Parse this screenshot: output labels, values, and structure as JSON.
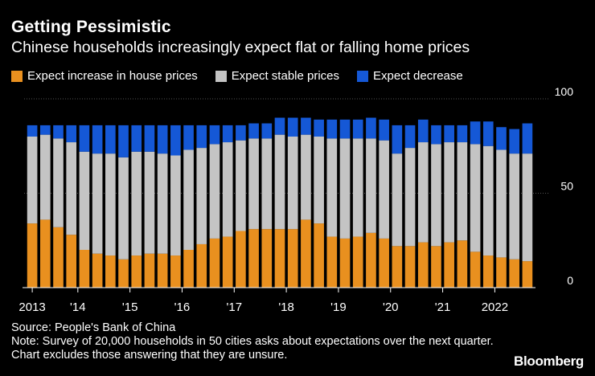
{
  "header": {
    "title": "Getting Pessimistic",
    "subtitle": "Chinese households increasingly expect flat or falling home prices"
  },
  "legend": {
    "increase_label": "Expect increase in house prices",
    "stable_label": "Expect stable prices",
    "decrease_label": "Expect decrease"
  },
  "colors": {
    "increase": "#e9901f",
    "stable": "#c4c4c4",
    "decrease": "#1558d6",
    "background": "#000000",
    "grid": "#555555"
  },
  "chart_data": {
    "type": "bar",
    "stacked": true,
    "title": "Getting Pessimistic",
    "subtitle": "Chinese households increasingly expect flat or falling home prices",
    "ylim": [
      0,
      100
    ],
    "yticks": [
      0,
      50,
      100
    ],
    "y_axis_side": "right",
    "grid": true,
    "x_tick_labels": [
      "2013",
      "'14",
      "'15",
      "'16",
      "'17",
      "'18",
      "'19",
      "'20",
      "'21",
      "2022"
    ],
    "periods": [
      "2013 Q1",
      "2013 Q2",
      "2013 Q3",
      "2013 Q4",
      "2014 Q1",
      "2014 Q2",
      "2014 Q3",
      "2014 Q4",
      "2015 Q1",
      "2015 Q2",
      "2015 Q3",
      "2015 Q4",
      "2016 Q1",
      "2016 Q2",
      "2016 Q3",
      "2016 Q4",
      "2017 Q1",
      "2017 Q2",
      "2017 Q3",
      "2017 Q4",
      "2018 Q1",
      "2018 Q2",
      "2018 Q3",
      "2018 Q4",
      "2019 Q1",
      "2019 Q2",
      "2019 Q3",
      "2019 Q4",
      "2020 Q1",
      "2020 Q2",
      "2020 Q3",
      "2020 Q4",
      "2021 Q1",
      "2021 Q2",
      "2021 Q3",
      "2021 Q4",
      "2022 Q1",
      "2022 Q2",
      "2022 Q3"
    ],
    "series": [
      {
        "name": "Expect increase in house prices",
        "values": [
          34,
          36,
          32,
          28,
          20,
          18,
          17,
          15,
          17,
          18,
          18,
          17,
          20,
          23,
          26,
          27,
          30,
          31,
          31,
          31,
          31,
          36,
          34,
          27,
          26,
          27,
          29,
          26,
          22,
          22,
          24,
          22,
          24,
          25,
          19,
          17,
          16,
          15,
          14
        ]
      },
      {
        "name": "Expect stable prices",
        "values": [
          46,
          45,
          47,
          49,
          52,
          53,
          54,
          54,
          55,
          54,
          53,
          53,
          53,
          51,
          50,
          50,
          48,
          48,
          48,
          50,
          49,
          45,
          46,
          52,
          53,
          52,
          50,
          52,
          49,
          52,
          53,
          54,
          53,
          52,
          57,
          58,
          57,
          56,
          57
        ]
      },
      {
        "name": "Expect decrease",
        "values": [
          6,
          5,
          7,
          9,
          14,
          15,
          15,
          17,
          14,
          14,
          15,
          16,
          13,
          12,
          10,
          9,
          8,
          8,
          8,
          9,
          10,
          9,
          9,
          10,
          10,
          10,
          11,
          11,
          15,
          12,
          12,
          10,
          9,
          9,
          12,
          13,
          12,
          13,
          16
        ]
      }
    ]
  },
  "footer": {
    "source": "Source: People's Bank of China",
    "note": "Note: Survey of 20,000 households in 50 cities asks about expectations over the next quarter. Chart excludes those answering that they are unsure.",
    "brand": "Bloomberg"
  }
}
